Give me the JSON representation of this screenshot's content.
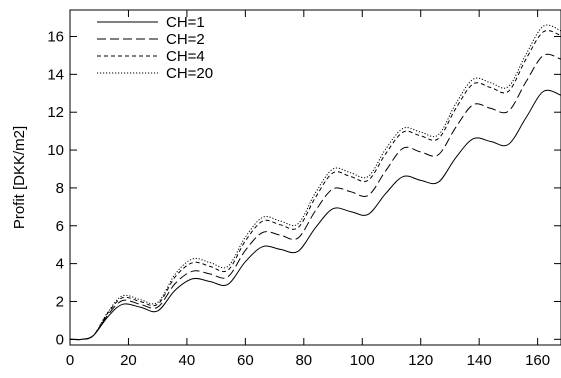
{
  "chart_data": {
    "type": "line",
    "title": "",
    "xlabel": "",
    "ylabel": "Profit [DKK/m2]",
    "xlim": [
      0,
      168
    ],
    "ylim": [
      -0.3,
      17.4
    ],
    "xticks": [
      0,
      20,
      40,
      60,
      80,
      100,
      120,
      140,
      160
    ],
    "yticks": [
      0,
      2,
      4,
      6,
      8,
      10,
      12,
      14,
      16
    ],
    "legend_position": "top-left",
    "grid": false,
    "series": [
      {
        "name": "CH=1",
        "color": "#000000",
        "dash": "solid",
        "x": [
          0,
          4,
          8,
          13,
          18,
          24,
          30,
          36,
          42,
          48,
          54,
          60,
          66,
          72,
          78,
          84,
          90,
          96,
          102,
          108,
          114,
          120,
          126,
          132,
          138,
          144,
          150,
          156,
          162,
          168
        ],
        "y": [
          0,
          0,
          0.2,
          1.2,
          1.85,
          1.7,
          1.5,
          2.6,
          3.2,
          3.05,
          2.9,
          4.1,
          4.9,
          4.75,
          4.65,
          5.9,
          6.9,
          6.75,
          6.6,
          7.7,
          8.6,
          8.4,
          8.3,
          9.6,
          10.6,
          10.45,
          10.3,
          11.7,
          13.1,
          12.9
        ]
      },
      {
        "name": "CH=2",
        "color": "#000000",
        "dash": "long-dash",
        "x": [
          0,
          4,
          8,
          13,
          18,
          24,
          30,
          36,
          42,
          48,
          54,
          60,
          66,
          72,
          78,
          84,
          90,
          96,
          102,
          108,
          114,
          120,
          126,
          132,
          138,
          144,
          150,
          156,
          162,
          168
        ],
        "y": [
          0,
          0,
          0.2,
          1.3,
          2.05,
          1.85,
          1.7,
          2.95,
          3.6,
          3.45,
          3.3,
          4.7,
          5.65,
          5.5,
          5.35,
          6.8,
          7.95,
          7.8,
          7.6,
          8.9,
          10.1,
          9.9,
          9.75,
          11.2,
          12.4,
          12.2,
          12.05,
          13.6,
          15.0,
          14.8
        ]
      },
      {
        "name": "CH=4",
        "color": "#000000",
        "dash": "short-dash",
        "x": [
          0,
          4,
          8,
          13,
          18,
          24,
          30,
          36,
          42,
          48,
          54,
          60,
          66,
          72,
          78,
          84,
          90,
          96,
          102,
          108,
          114,
          120,
          126,
          132,
          138,
          144,
          150,
          156,
          162,
          168
        ],
        "y": [
          0,
          0,
          0.2,
          1.4,
          2.2,
          2.0,
          1.85,
          3.3,
          4.05,
          3.85,
          3.65,
          5.2,
          6.25,
          6.05,
          5.9,
          7.5,
          8.8,
          8.6,
          8.4,
          9.8,
          10.95,
          10.75,
          10.6,
          12.2,
          13.5,
          13.3,
          13.1,
          14.8,
          16.25,
          16.05
        ]
      },
      {
        "name": "CH=20",
        "color": "#000000",
        "dash": "dotted",
        "x": [
          0,
          4,
          8,
          13,
          18,
          24,
          30,
          36,
          42,
          48,
          54,
          60,
          66,
          72,
          78,
          84,
          90,
          96,
          102,
          108,
          114,
          120,
          126,
          132,
          138,
          144,
          150,
          156,
          162,
          168
        ],
        "y": [
          0,
          0,
          0.2,
          1.45,
          2.3,
          2.1,
          1.95,
          3.45,
          4.25,
          4.05,
          3.85,
          5.4,
          6.45,
          6.25,
          6.1,
          7.75,
          9.0,
          8.8,
          8.6,
          10.05,
          11.15,
          10.95,
          10.8,
          12.45,
          13.75,
          13.55,
          13.35,
          15.05,
          16.55,
          16.3
        ]
      }
    ]
  }
}
